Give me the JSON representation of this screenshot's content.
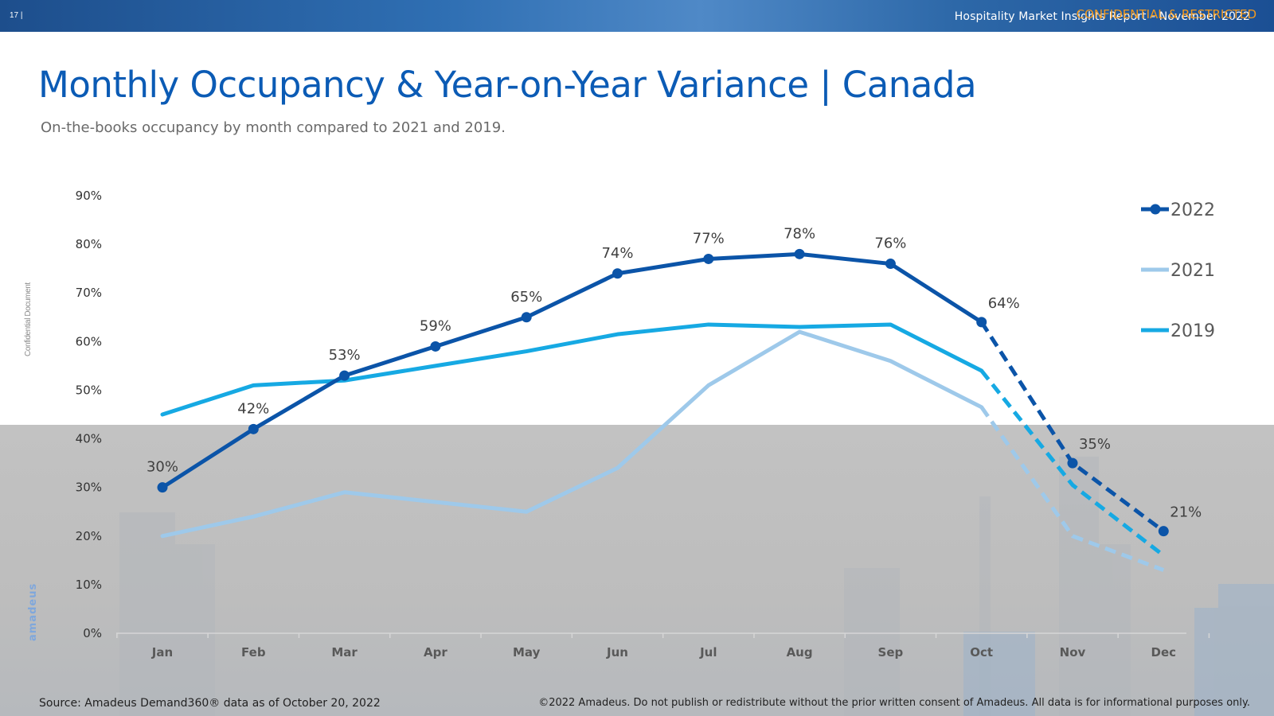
{
  "header": {
    "page_number": "17 |",
    "report_title": "Hospitality Market Insights Report – November 2022",
    "confidential": "CONFIDENTIAL & RESTRICTED"
  },
  "title": "Monthly Occupancy & Year-on-Year Variance | Canada",
  "subtitle": "On-the-books occupancy by month compared to 2021 and 2019.",
  "side_label": "Confidential Document",
  "logo_text": "amadeus",
  "footer": {
    "source": "Source: Amadeus Demand360® data as of October 20, 2022",
    "copyright": "©2022 Amadeus. Do not publish or redistribute without the prior written consent of Amadeus. All data is for informational purposes only."
  },
  "colors": {
    "series_2022": "#0b54a8",
    "series_2021": "#9ec9ea",
    "series_2019": "#16a9e3",
    "title": "#0b5bb5",
    "confidential": "#f39a1f"
  },
  "chart_data": {
    "type": "line",
    "title": "Monthly Occupancy & Year-on-Year Variance | Canada",
    "xlabel": "",
    "ylabel": "",
    "categories": [
      "Jan",
      "Feb",
      "Mar",
      "Apr",
      "May",
      "Jun",
      "Jul",
      "Aug",
      "Sep",
      "Oct",
      "Nov",
      "Dec"
    ],
    "y_ticks": [
      "0%",
      "10%",
      "20%",
      "30%",
      "40%",
      "50%",
      "60%",
      "70%",
      "80%",
      "90%"
    ],
    "ylim": [
      0,
      90
    ],
    "grid": false,
    "legend_position": "right",
    "dashed_from_category": "Oct",
    "series": [
      {
        "name": "2022",
        "values": [
          30,
          42,
          53,
          59,
          65,
          74,
          77,
          78,
          76,
          64,
          35,
          21
        ],
        "labels": [
          "30%",
          "42%",
          "53%",
          "59%",
          "65%",
          "74%",
          "77%",
          "78%",
          "76%",
          "64%",
          "35%",
          "21%"
        ],
        "markers": true
      },
      {
        "name": "2021",
        "values": [
          20,
          24,
          29,
          27,
          25,
          34,
          51,
          62,
          56,
          46.5,
          20,
          13
        ],
        "markers": false
      },
      {
        "name": "2019",
        "values": [
          45,
          51,
          52,
          55,
          58,
          61.5,
          63.5,
          63,
          63.5,
          54,
          30.5,
          16
        ],
        "markers": false
      }
    ]
  }
}
